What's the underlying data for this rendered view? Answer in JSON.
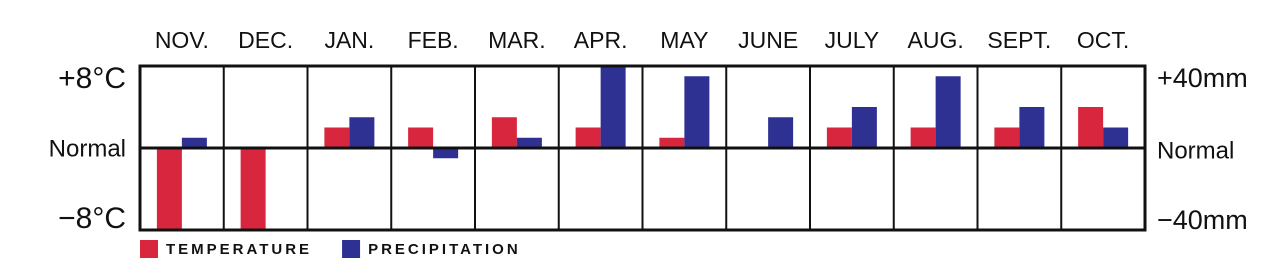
{
  "chart_data": {
    "type": "bar",
    "categories": [
      "NOV.",
      "DEC.",
      "JAN.",
      "FEB.",
      "MAR.",
      "APR.",
      "MAY",
      "JUNE",
      "JULY",
      "AUG.",
      "SEPT.",
      "OCT."
    ],
    "series": [
      {
        "name": "TEMPERATURE",
        "color": "#d7263d",
        "values": [
          -8,
          -8,
          2,
          2,
          3,
          2,
          1,
          0,
          2,
          2,
          2,
          4
        ]
      },
      {
        "name": "PRECIPITATION",
        "color": "#2e3192",
        "axis": "y2",
        "values": [
          5,
          0,
          15,
          -5,
          5,
          40,
          35,
          15,
          20,
          35,
          20,
          10
        ]
      }
    ],
    "ylim": [
      -8,
      8
    ],
    "yticks": [
      {
        "value": -8,
        "label": "−8°C"
      },
      {
        "value": 0,
        "label": "Normal"
      },
      {
        "value": 8,
        "label": "+8°C"
      }
    ],
    "y2lim": [
      -40,
      40
    ],
    "y2ticks": [
      {
        "value": -40,
        "label": "−40mm"
      },
      {
        "value": 0,
        "label": "Normal"
      },
      {
        "value": 40,
        "label": "+40mm"
      }
    ],
    "grid": true
  }
}
